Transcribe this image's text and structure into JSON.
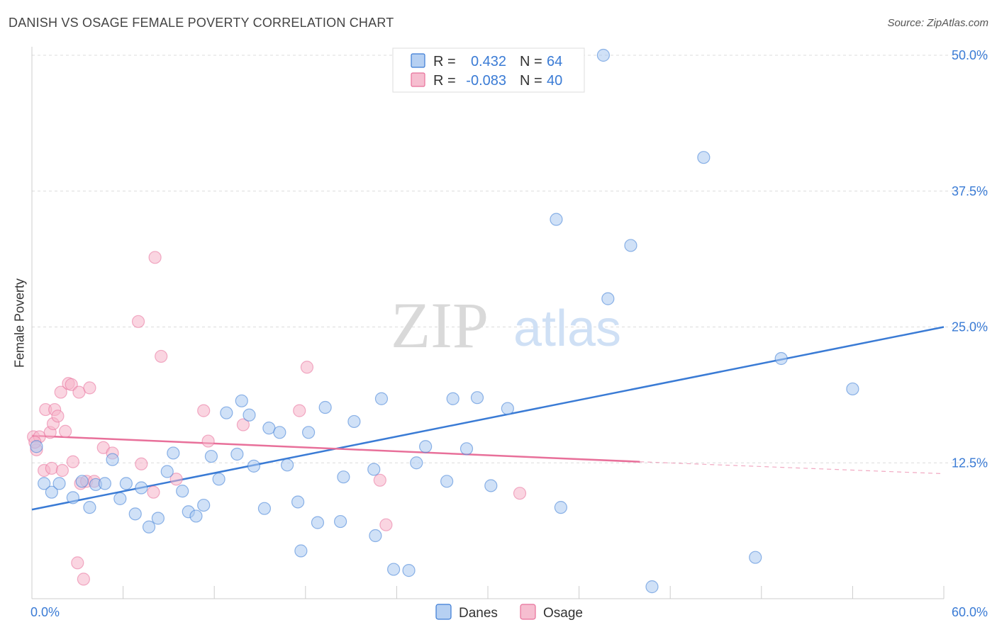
{
  "title": "DANISH VS OSAGE FEMALE POVERTY CORRELATION CHART",
  "source": "Source: ZipAtlas.com",
  "watermark": {
    "zip": "ZIP",
    "atlas": "atlas"
  },
  "legend": {
    "r_label": "R =",
    "n_label": "N =",
    "rows": [
      {
        "series": "Danes",
        "r": "0.432",
        "n": "64",
        "color": "#a9c8f0"
      },
      {
        "series": "Osage",
        "r": "-0.083",
        "n": "40",
        "color": "#f5b3c8"
      }
    ]
  },
  "chart_data": {
    "type": "scatter",
    "title": "DANISH VS OSAGE FEMALE POVERTY CORRELATION CHART",
    "xlabel": "",
    "ylabel": "Female Poverty",
    "xlim": [
      0,
      60
    ],
    "ylim": [
      0,
      50
    ],
    "x_tick_labels": [
      "0.0%",
      "60.0%"
    ],
    "y_ticks": [
      12.5,
      25.0,
      37.5,
      50.0
    ],
    "y_tick_labels": [
      "12.5%",
      "25.0%",
      "37.5%",
      "50.0%"
    ],
    "grid": "horizontal dashed",
    "legend_position": "top-center",
    "series": [
      {
        "name": "Danes",
        "color": "#3a7bd5",
        "fill": "#a9c8f0",
        "trend": {
          "x": [
            0,
            60
          ],
          "y": [
            8.2,
            25.0
          ]
        },
        "points": [
          [
            0.3,
            14.0
          ],
          [
            0.8,
            10.6
          ],
          [
            1.3,
            9.8
          ],
          [
            1.8,
            10.6
          ],
          [
            2.7,
            9.3
          ],
          [
            3.3,
            10.8
          ],
          [
            3.8,
            8.4
          ],
          [
            4.2,
            10.5
          ],
          [
            4.8,
            10.6
          ],
          [
            5.3,
            12.8
          ],
          [
            5.8,
            9.2
          ],
          [
            6.2,
            10.6
          ],
          [
            6.8,
            7.8
          ],
          [
            7.2,
            10.2
          ],
          [
            7.7,
            6.6
          ],
          [
            8.3,
            7.4
          ],
          [
            8.9,
            11.7
          ],
          [
            9.3,
            13.4
          ],
          [
            9.9,
            9.9
          ],
          [
            10.3,
            8.0
          ],
          [
            10.8,
            7.6
          ],
          [
            11.3,
            8.6
          ],
          [
            11.8,
            13.1
          ],
          [
            12.3,
            11.0
          ],
          [
            12.8,
            17.1
          ],
          [
            13.5,
            13.3
          ],
          [
            13.8,
            18.2
          ],
          [
            14.3,
            16.9
          ],
          [
            14.6,
            12.2
          ],
          [
            15.3,
            8.3
          ],
          [
            15.6,
            15.7
          ],
          [
            16.3,
            15.3
          ],
          [
            16.8,
            12.3
          ],
          [
            17.5,
            8.9
          ],
          [
            17.7,
            4.4
          ],
          [
            18.2,
            15.3
          ],
          [
            18.8,
            7.0
          ],
          [
            19.3,
            17.6
          ],
          [
            20.3,
            7.1
          ],
          [
            20.5,
            11.2
          ],
          [
            21.2,
            16.3
          ],
          [
            22.5,
            11.9
          ],
          [
            22.6,
            5.8
          ],
          [
            23.0,
            18.4
          ],
          [
            23.8,
            2.7
          ],
          [
            24.8,
            2.6
          ],
          [
            25.3,
            12.5
          ],
          [
            25.9,
            14.0
          ],
          [
            27.3,
            10.8
          ],
          [
            27.7,
            18.4
          ],
          [
            28.6,
            13.8
          ],
          [
            29.3,
            18.5
          ],
          [
            30.2,
            10.4
          ],
          [
            31.3,
            17.5
          ],
          [
            34.5,
            34.9
          ],
          [
            34.8,
            8.4
          ],
          [
            37.6,
            50.0
          ],
          [
            37.9,
            27.6
          ],
          [
            39.4,
            32.5
          ],
          [
            40.8,
            1.1
          ],
          [
            44.2,
            40.6
          ],
          [
            47.6,
            3.8
          ],
          [
            49.3,
            22.1
          ],
          [
            54.0,
            19.3
          ]
        ]
      },
      {
        "name": "Osage",
        "color": "#e8709a",
        "fill": "#f5b3c8",
        "trend": {
          "x": [
            0,
            40
          ],
          "y": [
            15.0,
            12.6
          ]
        },
        "trend_dashed": {
          "x": [
            40,
            60
          ],
          "y": [
            12.6,
            11.5
          ]
        },
        "points": [
          [
            0.1,
            14.9
          ],
          [
            0.3,
            13.7
          ],
          [
            0.5,
            14.9
          ],
          [
            0.8,
            11.8
          ],
          [
            0.9,
            17.4
          ],
          [
            1.2,
            15.3
          ],
          [
            1.3,
            12.0
          ],
          [
            1.4,
            16.1
          ],
          [
            1.5,
            17.4
          ],
          [
            1.7,
            16.8
          ],
          [
            1.9,
            19.0
          ],
          [
            2.0,
            11.8
          ],
          [
            2.2,
            15.4
          ],
          [
            2.4,
            19.8
          ],
          [
            2.6,
            19.7
          ],
          [
            2.7,
            12.6
          ],
          [
            3.0,
            3.3
          ],
          [
            3.1,
            19.0
          ],
          [
            3.2,
            10.6
          ],
          [
            3.4,
            1.8
          ],
          [
            3.6,
            10.8
          ],
          [
            3.8,
            19.4
          ],
          [
            4.1,
            10.8
          ],
          [
            4.7,
            13.9
          ],
          [
            5.3,
            13.4
          ],
          [
            7.0,
            25.5
          ],
          [
            7.2,
            12.4
          ],
          [
            8.0,
            9.8
          ],
          [
            8.1,
            31.4
          ],
          [
            8.5,
            22.3
          ],
          [
            9.5,
            11.0
          ],
          [
            11.3,
            17.3
          ],
          [
            11.6,
            14.5
          ],
          [
            13.9,
            16.0
          ],
          [
            17.6,
            17.3
          ],
          [
            18.1,
            21.3
          ],
          [
            22.9,
            10.9
          ],
          [
            23.3,
            6.8
          ],
          [
            32.1,
            9.7
          ],
          [
            0.2,
            14.4
          ]
        ]
      }
    ]
  }
}
